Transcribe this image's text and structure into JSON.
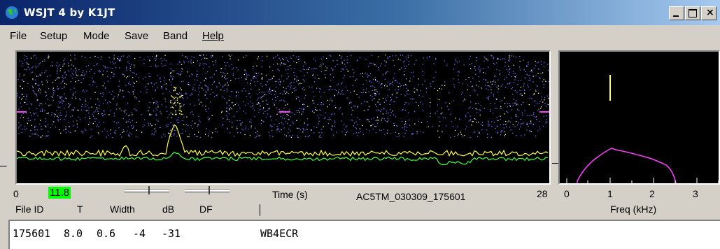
{
  "window": {
    "title": "WSJT 4   by K1JT",
    "icon": "globe-icon",
    "controls": [
      "minimize-icon",
      "maximize-icon",
      "close-icon"
    ]
  },
  "menu": {
    "file": "File",
    "setup": "Setup",
    "mode": "Mode",
    "save": "Save",
    "band": "Band",
    "help": "Help"
  },
  "time_axis": {
    "start": "0",
    "cursor": "11.8",
    "label": "Time (s)",
    "filename": "AC5TM_030309_175601",
    "end": "28"
  },
  "freq_axis": {
    "ticks": [
      "0",
      "1",
      "2",
      "3"
    ],
    "label": "Freq (kHz)"
  },
  "columns": {
    "file_id": "File ID",
    "t": "T",
    "width": "Width",
    "db": "dB",
    "df": "DF"
  },
  "decode": {
    "file_id": "175601",
    "t": "8.0",
    "width": "0.6",
    "db": "-4",
    "df": "-31",
    "message": "WB4ECR"
  },
  "colors": {
    "waterfall_dots": "#7070ff",
    "ping_trace": "#ffff40",
    "baseline_trace": "#40ff40",
    "spectrum_curve": "#ff40ff",
    "cursor_highlight": "#00ff00"
  }
}
